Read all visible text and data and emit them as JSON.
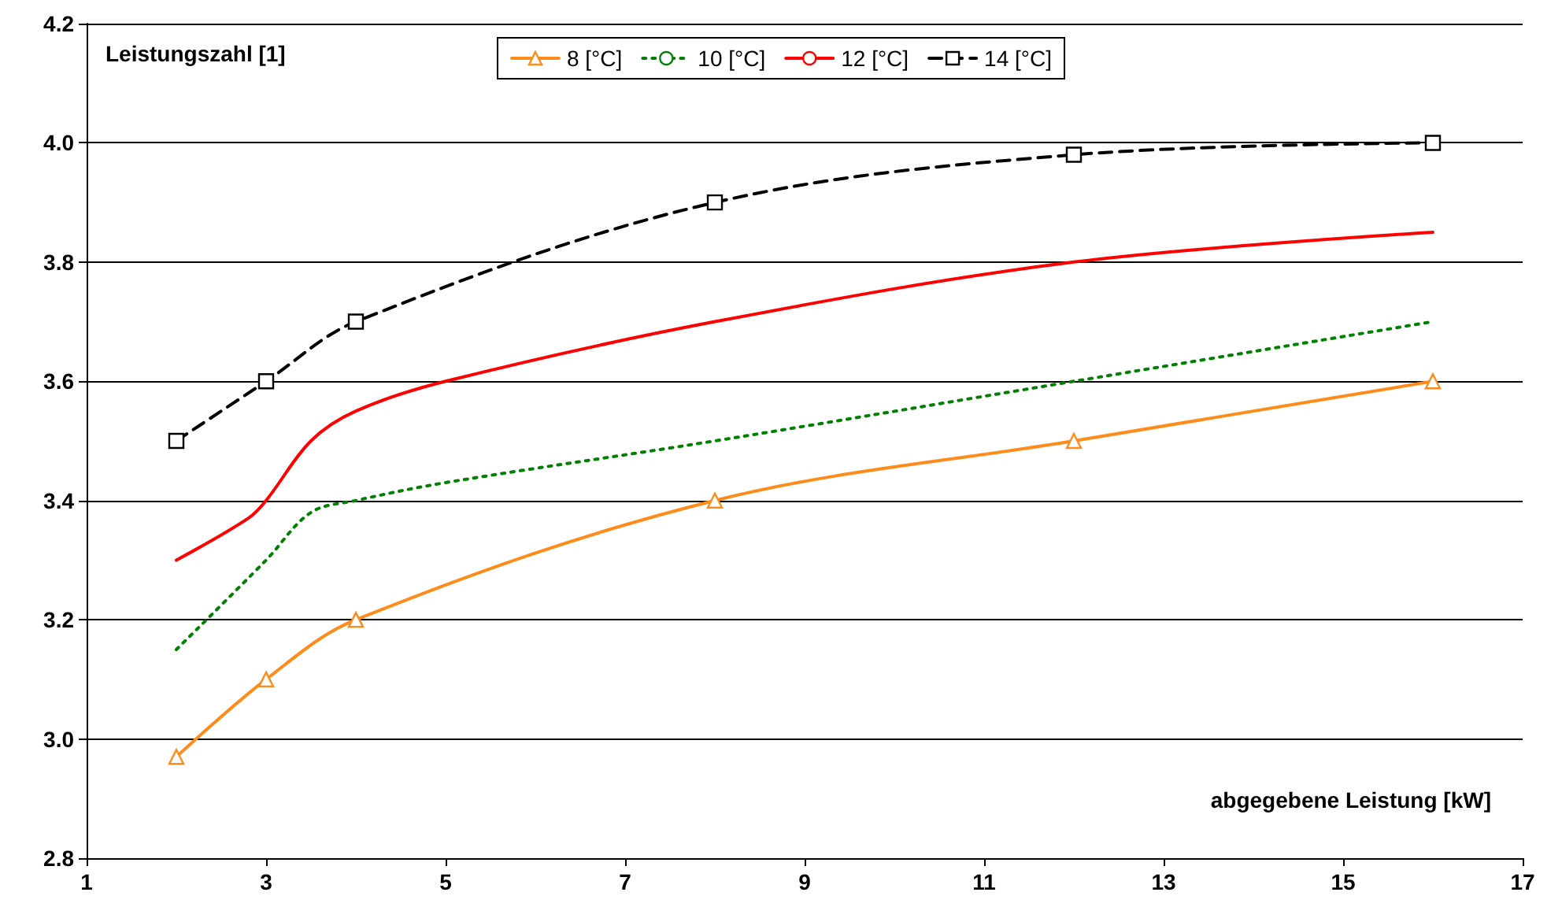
{
  "chart_data": {
    "type": "line",
    "xlabel": "abgegebene Leistung [kW]",
    "ylabel": "Leistungszahl [1]",
    "xlim": [
      1,
      17
    ],
    "xticks": [
      1,
      3,
      5,
      7,
      9,
      11,
      13,
      15,
      17
    ],
    "ylim": [
      2.8,
      4.2
    ],
    "yticks": [
      2.8,
      {
        "value": 3,
        "label": "3.0"
      },
      3.2,
      3.4,
      3.6,
      3.8,
      {
        "value": 4,
        "label": "4.0"
      },
      4.2
    ],
    "grid": "y",
    "legend": "top",
    "series": [
      {
        "name": "8 [°C]",
        "color": "#ff8c1a",
        "marker": "triangle",
        "line_style": "solid",
        "x": [
          2,
          3,
          4,
          8,
          12,
          16
        ],
        "values": [
          2.97,
          3.1,
          3.2,
          3.4,
          3.5,
          3.6
        ]
      },
      {
        "name": "10 [°C]",
        "color": "#008000",
        "marker": "none",
        "line_style": "dotted",
        "x": [
          2,
          3,
          3.5,
          4,
          5,
          8,
          12,
          16
        ],
        "values": [
          3.15,
          3.3,
          3.38,
          3.4,
          3.43,
          3.5,
          3.6,
          3.7
        ]
      },
      {
        "name": "12 [°C]",
        "color": "#ff0000",
        "marker": "none",
        "line_style": "solid",
        "x": [
          2,
          2.8,
          3,
          3.5,
          4,
          5,
          8,
          12,
          16
        ],
        "values": [
          3.3,
          3.37,
          3.4,
          3.5,
          3.55,
          3.6,
          3.7,
          3.8,
          3.85
        ]
      },
      {
        "name": "14 [°C]",
        "color": "#000000",
        "marker": "square",
        "line_style": "dashed",
        "x": [
          2,
          3,
          4,
          8,
          12,
          16
        ],
        "values": [
          3.5,
          3.6,
          3.7,
          3.9,
          3.98,
          4.0
        ]
      }
    ]
  }
}
